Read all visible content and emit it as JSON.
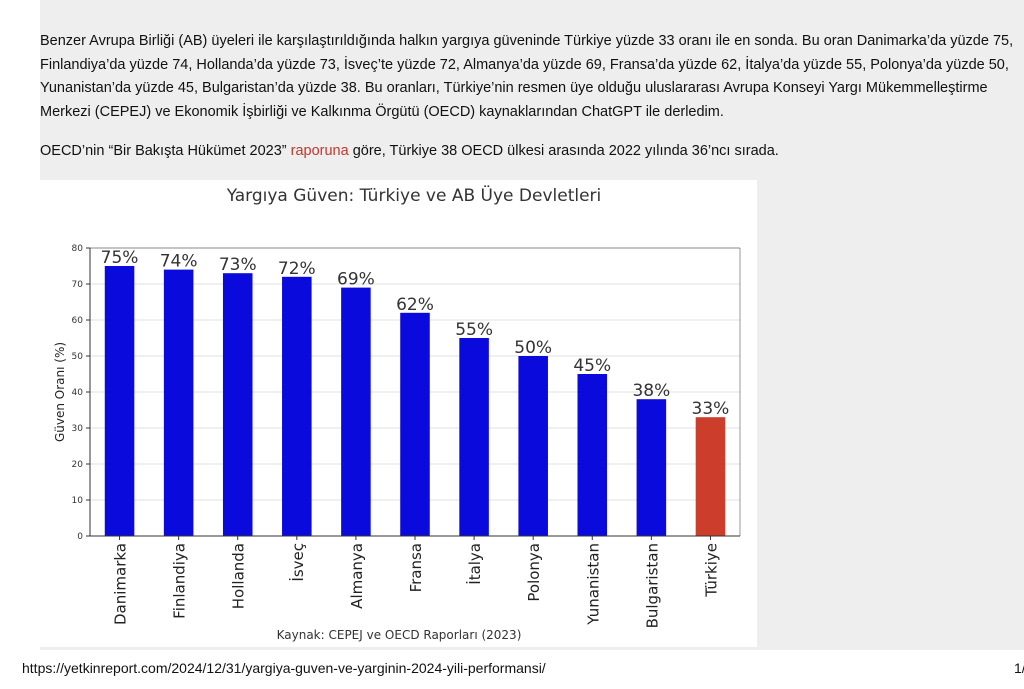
{
  "article": {
    "paragraph1": "Benzer Avrupa Birliği (AB) üyeleri ile karşılaştırıldığında halkın yargıya güveninde Türkiye yüzde 33 oranı ile en sonda. Bu oran Danimarka’da yüzde 75, Finlandiya’da yüzde 74, Hollanda’da yüzde 73, İsveç’te yüzde 72, Almanya’da yüzde 69, Fransa’da yüzde 62, İtalya’da yüzde 55, Polonya’da yüzde 50, Yunanistan’da yüzde 45, Bulgaristan’da yüzde 38. Bu oranları, Türkiye’nin resmen üye olduğu uluslararası Avrupa Konseyi Yargı Mükemmelleştirme Merkezi (CEPEJ) ve Ekonomik İşbirliği ve Kalkınma Örgütü (OECD) kaynaklarından ChatGPT ile derledim.",
    "paragraph2_before": "OECD’nin “Bir Bakışta Hükümet 2023” ",
    "paragraph2_link": "raporuna",
    "paragraph2_after": " göre, Türkiye 38 OECD ülkesi arasında 2022 yılında 36’ncı sırada."
  },
  "chart_data": {
    "type": "bar",
    "title": "Yargıya Güven: Türkiye ve AB Üye Devletleri",
    "ylabel": "Güven Oranı (%)",
    "xlabel": "Kaynak: CEPEJ ve OECD Raporları (2023)",
    "categories": [
      "Danimarka",
      "Finlandiya",
      "Hollanda",
      "İsveç",
      "Almanya",
      "Fransa",
      "İtalya",
      "Polonya",
      "Yunanistan",
      "Bulgaristan",
      "Türkiye"
    ],
    "values": [
      75,
      74,
      73,
      72,
      69,
      62,
      55,
      50,
      45,
      38,
      33
    ],
    "data_labels": [
      "75%",
      "74%",
      "73%",
      "72%",
      "69%",
      "62%",
      "55%",
      "50%",
      "45%",
      "38%",
      "33%"
    ],
    "ylim": [
      0,
      80
    ],
    "yticks": [
      0,
      10,
      20,
      30,
      40,
      50,
      60,
      70,
      80
    ],
    "grid": true,
    "colors": {
      "default": "#0a0adc",
      "highlight": "#cc3d2c",
      "highlight_category": "Türkiye"
    }
  },
  "footer": {
    "url": "https://yetkinreport.com/2024/12/31/yargiya-guven-ve-yarginin-2024-yili-performansi/",
    "page": "1/"
  }
}
